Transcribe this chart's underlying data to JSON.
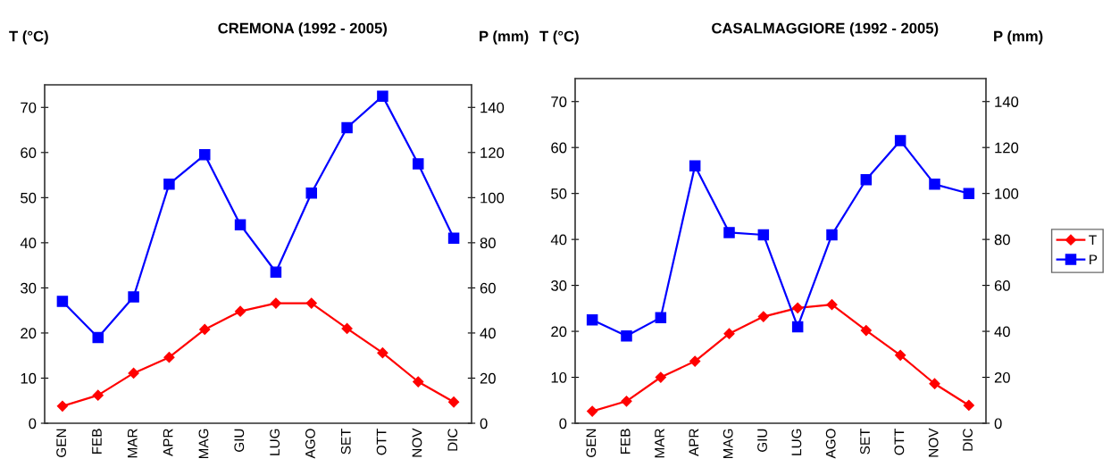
{
  "chart_data": [
    {
      "type": "line",
      "title": "CREMONA (1992 - 2005)",
      "ylabel": "T (°C)",
      "y2label": "P (mm)",
      "categories": [
        "GEN",
        "FEB",
        "MAR",
        "APR",
        "MAG",
        "GIU",
        "LUG",
        "AGO",
        "SET",
        "OTT",
        "NOV",
        "DIC"
      ],
      "series": [
        {
          "color": "#ff0000",
          "marker": "diamond",
          "values": [
            3.8,
            6.2,
            11.1,
            14.6,
            20.8,
            24.8,
            26.6,
            26.6,
            21.0,
            15.6,
            9.2,
            4.7
          ]
        },
        {
          "color": "#0000ff",
          "marker": "square",
          "axis": "y2",
          "values": [
            54,
            38,
            56,
            106,
            119,
            88,
            67,
            102,
            131,
            145,
            115,
            82
          ]
        }
      ],
      "ylim": [
        0,
        75
      ],
      "yticks": [
        0,
        10,
        20,
        30,
        40,
        50,
        60,
        70
      ],
      "y2lim": [
        0,
        150
      ],
      "y2ticks": [
        0,
        20,
        40,
        60,
        80,
        100,
        120,
        140
      ],
      "grid": false,
      "legend": false
    },
    {
      "type": "line",
      "title": "CASALMAGGIORE (1992 - 2005)",
      "ylabel": "T (°C)",
      "y2label": "P (mm)",
      "categories": [
        "GEN",
        "FEB",
        "MAR",
        "APR",
        "MAG",
        "GIU",
        "LUG",
        "AGO",
        "SET",
        "OTT",
        "NOV",
        "DIC"
      ],
      "series": [
        {
          "name": "T",
          "color": "#ff0000",
          "marker": "diamond",
          "values": [
            2.6,
            4.8,
            10.0,
            13.5,
            19.5,
            23.2,
            25.1,
            25.8,
            20.2,
            14.8,
            8.6,
            3.9
          ]
        },
        {
          "name": "P",
          "color": "#0000ff",
          "marker": "square",
          "axis": "y2",
          "values": [
            45,
            38,
            46,
            112,
            83,
            82,
            42,
            82,
            106,
            123,
            104,
            100
          ]
        }
      ],
      "ylim": [
        0,
        75
      ],
      "yticks": [
        0,
        10,
        20,
        30,
        40,
        50,
        60,
        70
      ],
      "y2lim": [
        0,
        150
      ],
      "y2ticks": [
        0,
        20,
        40,
        60,
        80,
        100,
        120,
        140
      ],
      "grid": false,
      "legend": "right"
    }
  ]
}
